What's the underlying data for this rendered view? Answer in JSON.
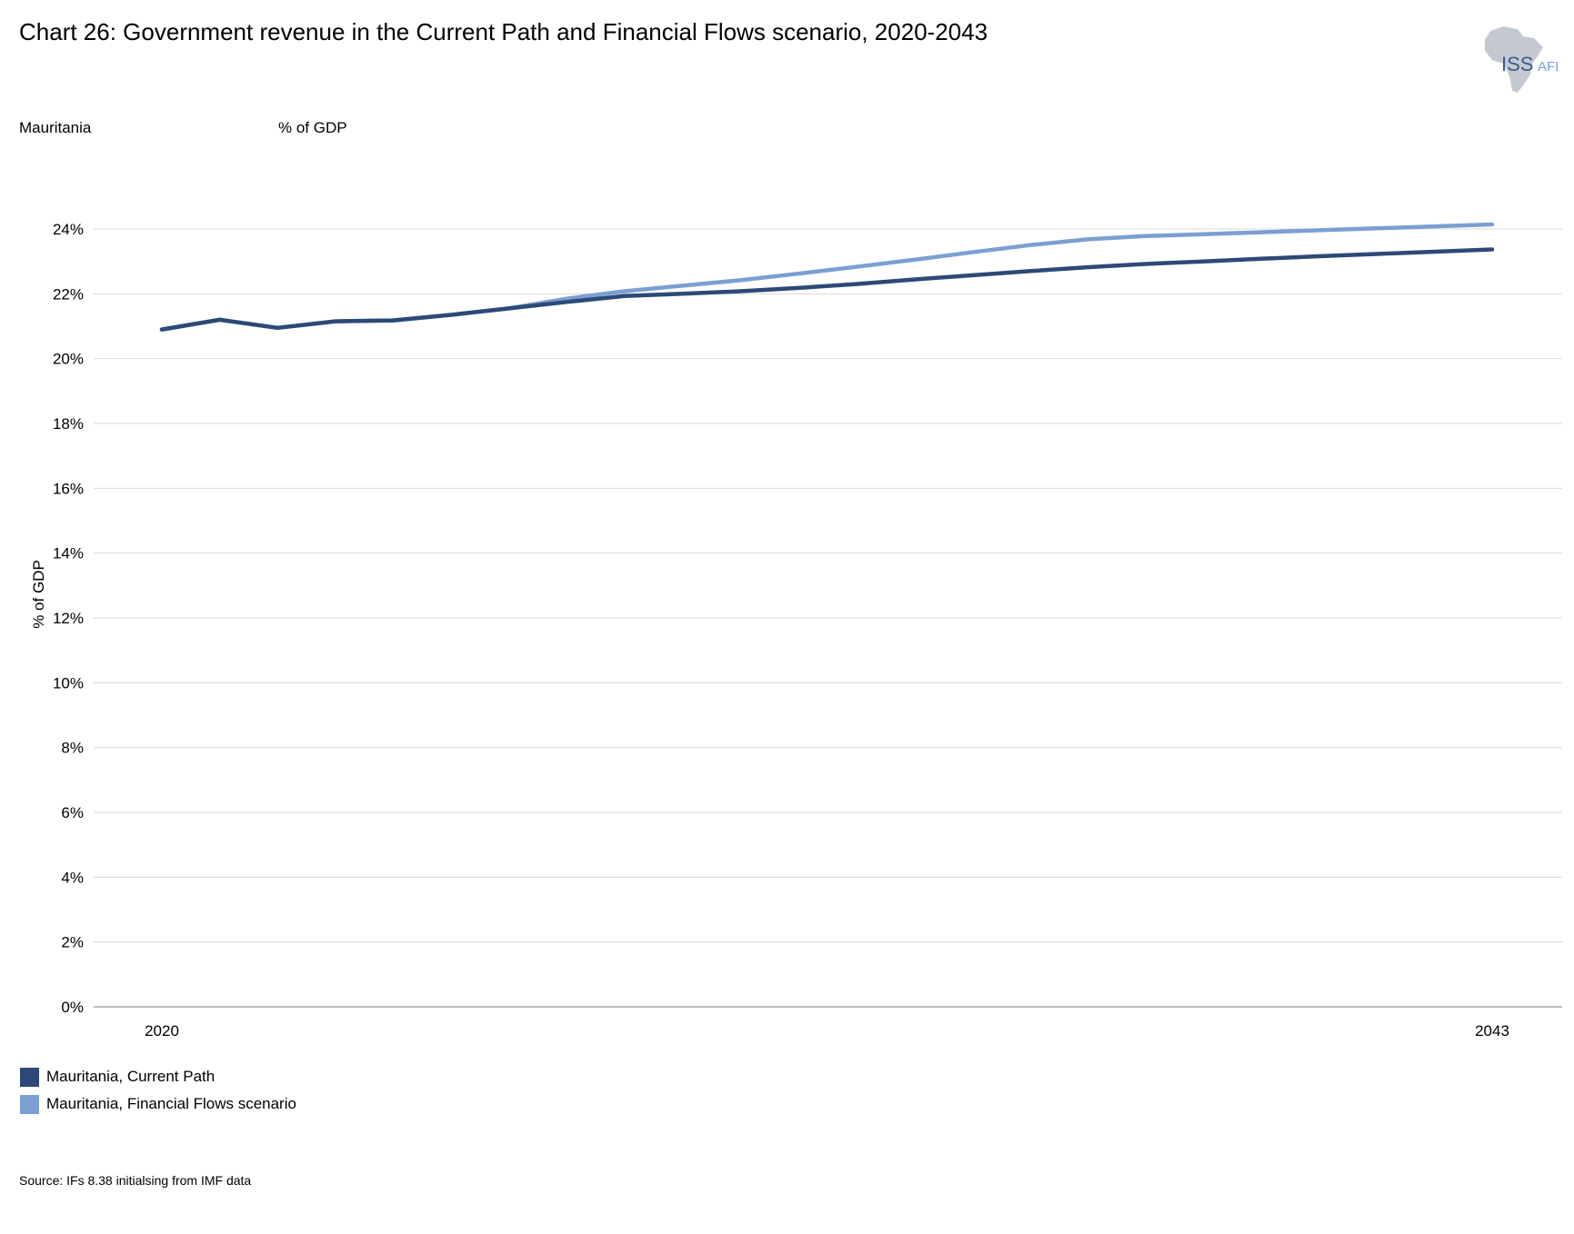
{
  "header": {
    "title": "Chart 26: Government revenue in the Current Path and Financial Flows scenario, 2020-2043",
    "country": "Mauritania",
    "unit": "% of GDP"
  },
  "logo": {
    "text_main": "ISS",
    "text_sub": "AFI",
    "icon": "africa-map-icon"
  },
  "colors": {
    "current_path": "#2b4a78",
    "financial_flows": "#7b9fd2",
    "grid": "#d9d9d9",
    "axis": "#a6a6a6"
  },
  "chart_data": {
    "type": "line",
    "title": "Chart 26: Government revenue in the Current Path and Financial Flows scenario, 2020-2043",
    "ylabel": "% of GDP",
    "xlabel": "",
    "ylim": [
      0,
      24
    ],
    "yticks": [
      0,
      2,
      4,
      6,
      8,
      10,
      12,
      14,
      16,
      18,
      20,
      22,
      24
    ],
    "ytick_labels": [
      "0%",
      "2%",
      "4%",
      "6%",
      "8%",
      "10%",
      "12%",
      "14%",
      "16%",
      "18%",
      "20%",
      "22%",
      "24%"
    ],
    "xlim": [
      2020,
      2043
    ],
    "xtick_labels": [
      "2020",
      "2043"
    ],
    "grid": true,
    "legend_position": "bottom-left",
    "x": [
      2020,
      2021,
      2022,
      2023,
      2024,
      2025,
      2026,
      2027,
      2028,
      2029,
      2030,
      2031,
      2032,
      2033,
      2034,
      2035,
      2036,
      2037,
      2038,
      2039,
      2040,
      2041,
      2042,
      2043
    ],
    "series": [
      {
        "name": "Mauritania, Current Path",
        "color": "#2b4a78",
        "values": [
          20.9,
          21.2,
          20.95,
          21.15,
          21.18,
          21.35,
          21.55,
          21.75,
          21.93,
          22.0,
          22.08,
          22.18,
          22.3,
          22.44,
          22.57,
          22.7,
          22.82,
          22.92,
          23.0,
          23.08,
          23.16,
          23.23,
          23.3,
          23.37
        ]
      },
      {
        "name": "Mauritania, Financial Flows scenario",
        "color": "#7b9fd2",
        "values": [
          20.9,
          21.2,
          20.95,
          21.15,
          21.18,
          21.35,
          21.55,
          21.85,
          22.08,
          22.25,
          22.42,
          22.62,
          22.83,
          23.05,
          23.28,
          23.5,
          23.68,
          23.78,
          23.84,
          23.9,
          23.96,
          24.02,
          24.08,
          24.14
        ]
      }
    ]
  },
  "legend": [
    {
      "label": "Mauritania, Current Path",
      "color": "#2b4a78"
    },
    {
      "label": "Mauritania, Financial Flows scenario",
      "color": "#7b9fd2"
    }
  ],
  "source": "Source: IFs 8.38 initialsing from IMF data"
}
